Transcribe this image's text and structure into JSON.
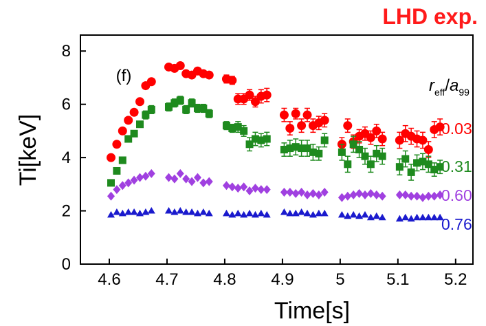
{
  "header": {
    "corner_title": "LHD exp."
  },
  "colors": {
    "s003": "#ff0000",
    "s031": "#1e8a1e",
    "s060": "#a040e0",
    "s076": "#1a1acd",
    "axis": "#000000",
    "title": "#ff1a1a"
  },
  "chart_data": {
    "type": "scatter",
    "title": "",
    "panel_label": "(f)",
    "xlabel": "Time[s]",
    "ylabel": "Ti[keV]",
    "xlim": [
      4.55,
      5.23
    ],
    "ylim": [
      0,
      8.6
    ],
    "x_ticks": [
      4.6,
      4.7,
      4.8,
      4.9,
      5.0,
      5.1,
      5.2
    ],
    "x_tick_labels": [
      "4.6",
      "4.7",
      "4.8",
      "4.9",
      "5",
      "5.1",
      "5.2"
    ],
    "y_ticks": [
      0,
      2,
      4,
      6,
      8
    ],
    "y_tick_labels": [
      "0",
      "2",
      "4",
      "6",
      "8"
    ],
    "legend_header": {
      "r": "r",
      "r_sub": "eff",
      "a": "a",
      "a_sub": "99"
    },
    "grid": false,
    "series": [
      {
        "name": "0.03",
        "marker": "circle",
        "color": "#ff0000",
        "x": [
          4.603,
          4.613,
          4.623,
          4.633,
          4.643,
          4.653,
          4.663,
          4.673,
          4.703,
          4.713,
          4.723,
          4.733,
          4.743,
          4.753,
          4.763,
          4.773,
          4.803,
          4.813,
          4.823,
          4.833,
          4.843,
          4.853,
          4.863,
          4.873,
          4.903,
          4.913,
          4.923,
          4.933,
          4.943,
          4.953,
          4.963,
          4.973,
          5.003,
          5.013,
          5.023,
          5.033,
          5.043,
          5.053,
          5.063,
          5.073,
          5.103,
          5.113,
          5.123,
          5.133,
          5.143,
          5.153,
          5.163,
          5.173
        ],
        "y": [
          4.0,
          4.5,
          5.0,
          5.4,
          5.7,
          6.1,
          6.7,
          6.85,
          7.4,
          7.35,
          7.45,
          7.15,
          7.1,
          7.25,
          7.15,
          7.1,
          6.95,
          6.9,
          6.2,
          6.2,
          6.35,
          6.1,
          6.3,
          6.35,
          5.6,
          5.1,
          5.65,
          5.2,
          5.6,
          5.2,
          5.3,
          5.4,
          4.5,
          5.2,
          4.6,
          4.8,
          4.9,
          4.75,
          5.0,
          4.7,
          4.65,
          4.9,
          4.8,
          4.7,
          4.65,
          4.3,
          5.05,
          5.15
        ],
        "err": [
          0,
          0,
          0,
          0,
          0,
          0,
          0,
          0,
          0,
          0,
          0,
          0,
          0,
          0,
          0,
          0,
          0.15,
          0.15,
          0.2,
          0.2,
          0.2,
          0.2,
          0.25,
          0.25,
          0.25,
          0.25,
          0.2,
          0.25,
          0.25,
          0.25,
          0.25,
          0.25,
          0.25,
          0.25,
          0.25,
          0.25,
          0.25,
          0.25,
          0.25,
          0.25,
          0.3,
          0.3,
          0.3,
          0.3,
          0.3,
          0.3,
          0.3,
          0.3
        ]
      },
      {
        "name": "0.31",
        "marker": "square",
        "color": "#1e8a1e",
        "x": [
          4.603,
          4.613,
          4.623,
          4.633,
          4.643,
          4.653,
          4.663,
          4.673,
          4.703,
          4.713,
          4.723,
          4.733,
          4.743,
          4.753,
          4.763,
          4.773,
          4.803,
          4.813,
          4.823,
          4.833,
          4.843,
          4.853,
          4.863,
          4.873,
          4.903,
          4.913,
          4.923,
          4.933,
          4.943,
          4.953,
          4.963,
          4.973,
          5.003,
          5.013,
          5.023,
          5.033,
          5.043,
          5.053,
          5.063,
          5.073,
          5.103,
          5.113,
          5.123,
          5.133,
          5.143,
          5.153,
          5.163,
          5.173
        ],
        "y": [
          3.05,
          3.5,
          3.9,
          4.7,
          4.9,
          5.25,
          5.6,
          5.8,
          5.9,
          6.05,
          6.15,
          5.8,
          6.05,
          5.85,
          5.85,
          5.65,
          5.2,
          5.1,
          5.15,
          5.0,
          4.5,
          4.7,
          4.65,
          4.7,
          4.3,
          4.35,
          4.4,
          4.35,
          4.35,
          4.2,
          4.15,
          4.65,
          4.2,
          3.75,
          4.5,
          4.3,
          4.05,
          3.75,
          4.15,
          4.05,
          3.65,
          3.95,
          3.45,
          3.8,
          3.85,
          3.75,
          3.55,
          3.65
        ],
        "err": [
          0,
          0,
          0,
          0,
          0,
          0,
          0.15,
          0.15,
          0.15,
          0.15,
          0.15,
          0.15,
          0.15,
          0.15,
          0.15,
          0.15,
          0.15,
          0.15,
          0.2,
          0.2,
          0.25,
          0.25,
          0.25,
          0.25,
          0.25,
          0.3,
          0.3,
          0.3,
          0.3,
          0.3,
          0.25,
          0.25,
          0.3,
          0.3,
          0.3,
          0.3,
          0.3,
          0.3,
          0.3,
          0.3,
          0.3,
          0.3,
          0.3,
          0.3,
          0.3,
          0.3,
          0.25,
          0.25
        ]
      },
      {
        "name": "0.60",
        "marker": "diamond",
        "color": "#a040e0",
        "x": [
          4.603,
          4.613,
          4.623,
          4.633,
          4.643,
          4.653,
          4.663,
          4.673,
          4.703,
          4.713,
          4.723,
          4.733,
          4.743,
          4.753,
          4.763,
          4.773,
          4.803,
          4.813,
          4.823,
          4.833,
          4.843,
          4.853,
          4.863,
          4.873,
          4.903,
          4.913,
          4.923,
          4.933,
          4.943,
          4.953,
          4.963,
          4.973,
          5.003,
          5.013,
          5.023,
          5.033,
          5.043,
          5.053,
          5.063,
          5.073,
          5.103,
          5.113,
          5.123,
          5.133,
          5.143,
          5.153,
          5.163,
          5.173
        ],
        "y": [
          2.55,
          2.8,
          2.95,
          3.05,
          3.15,
          3.25,
          3.3,
          3.4,
          3.25,
          3.2,
          3.4,
          3.2,
          3.1,
          3.25,
          3.05,
          3.1,
          2.95,
          2.9,
          2.85,
          2.9,
          2.75,
          2.85,
          2.8,
          2.8,
          2.7,
          2.7,
          2.65,
          2.7,
          2.6,
          2.65,
          2.6,
          2.7,
          2.5,
          2.55,
          2.6,
          2.65,
          2.6,
          2.65,
          2.6,
          2.55,
          2.6,
          2.6,
          2.55,
          2.55,
          2.5,
          2.55,
          2.55,
          2.6
        ],
        "err": []
      },
      {
        "name": "0.76",
        "marker": "triangle",
        "color": "#1a1acd",
        "x": [
          4.603,
          4.613,
          4.623,
          4.633,
          4.643,
          4.653,
          4.663,
          4.673,
          4.703,
          4.713,
          4.723,
          4.733,
          4.743,
          4.753,
          4.763,
          4.773,
          4.803,
          4.813,
          4.823,
          4.833,
          4.843,
          4.853,
          4.863,
          4.873,
          4.903,
          4.913,
          4.923,
          4.933,
          4.943,
          4.953,
          4.963,
          4.973,
          5.003,
          5.013,
          5.023,
          5.033,
          5.043,
          5.053,
          5.063,
          5.073,
          5.103,
          5.113,
          5.123,
          5.133,
          5.143,
          5.153,
          5.163,
          5.173
        ],
        "y": [
          1.85,
          1.95,
          1.9,
          1.95,
          1.95,
          1.9,
          1.95,
          2.0,
          2.0,
          1.95,
          2.0,
          1.95,
          1.95,
          1.9,
          1.95,
          1.9,
          1.9,
          1.85,
          1.9,
          1.85,
          1.9,
          1.85,
          1.9,
          1.85,
          1.95,
          1.9,
          1.9,
          1.95,
          1.9,
          1.85,
          1.9,
          1.9,
          1.85,
          1.8,
          1.85,
          1.8,
          1.85,
          1.75,
          1.8,
          1.75,
          1.7,
          1.75,
          1.7,
          1.75,
          1.75,
          1.75,
          1.75,
          1.75
        ],
        "err": []
      }
    ]
  }
}
